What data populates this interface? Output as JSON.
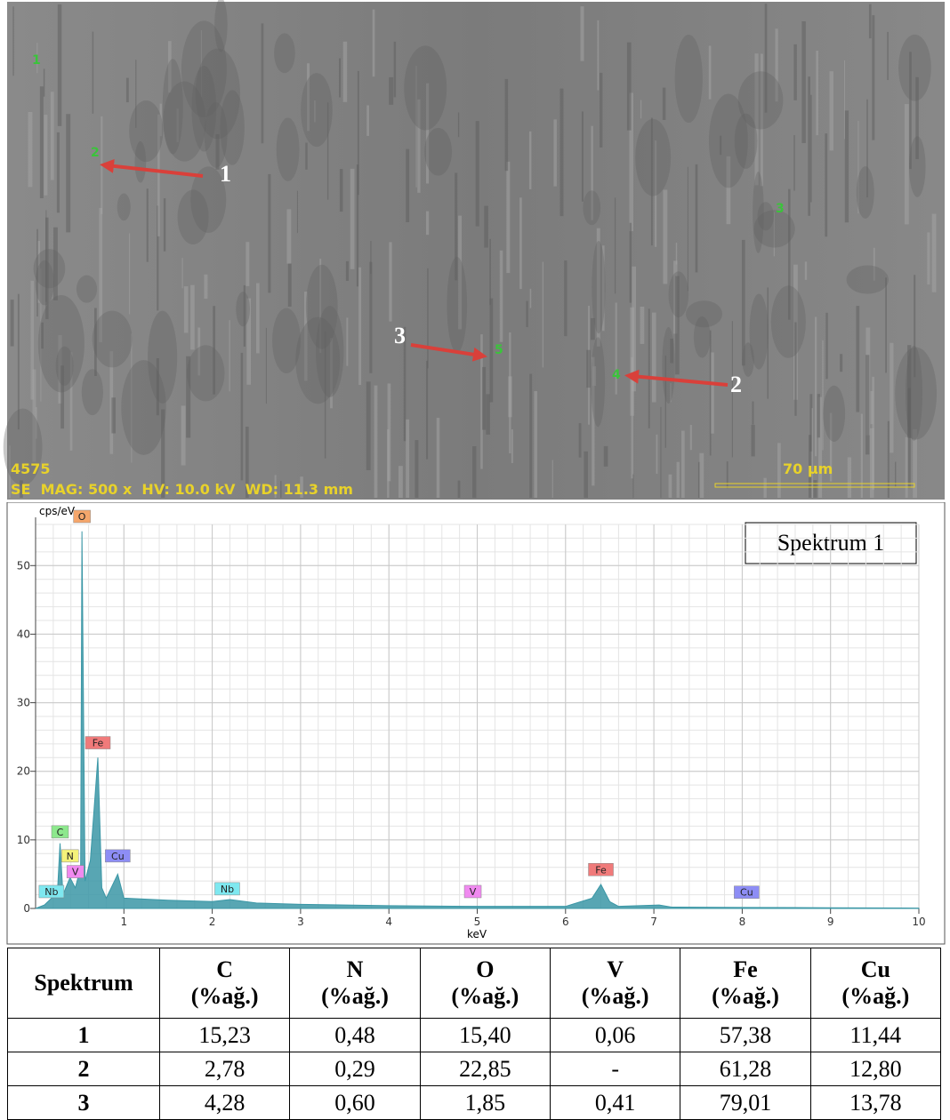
{
  "sem_image": {
    "point_labels": [
      "1",
      "2",
      "3",
      "4",
      "5"
    ],
    "arrow_labels": [
      "1",
      "2",
      "3"
    ],
    "sample_id": "4575",
    "info": "SE  MAG: 500 x  HV: 10.0 kV  WD: 11.3 mm",
    "scale_bar": "70 µm"
  },
  "chart_data": {
    "type": "area",
    "ylabel": "cps/eV",
    "xlabel": "keV",
    "box_label": "Spektrum 1",
    "x": [
      0,
      0.1,
      0.18,
      0.25,
      0.277,
      0.31,
      0.39,
      0.45,
      0.51,
      0.525,
      0.56,
      0.62,
      0.705,
      0.75,
      0.8,
      0.93,
      1.0,
      1.5,
      2.0,
      2.2,
      2.5,
      3,
      4,
      5,
      6,
      6.3,
      6.4,
      6.5,
      6.6,
      7.06,
      7.2,
      8,
      9,
      10
    ],
    "series": [
      {
        "name": "Spektrum 1",
        "color": "#3b97a6",
        "values": [
          0,
          0.5,
          1.5,
          3,
          9.5,
          2,
          4.5,
          3,
          6,
          55,
          4,
          7,
          22,
          3,
          1.5,
          5,
          1.5,
          1.2,
          1.0,
          1.3,
          0.8,
          0.6,
          0.4,
          0.3,
          0.3,
          1.5,
          3.5,
          1.0,
          0.3,
          0.5,
          0.2,
          0.15,
          0.1,
          0.05
        ]
      }
    ],
    "xlim": [
      0,
      10
    ],
    "xticks": [
      1,
      2,
      3,
      4,
      5,
      6,
      7,
      8,
      9,
      10
    ],
    "ylim": [
      0,
      56
    ],
    "yticks": [
      0,
      10,
      20,
      30,
      40,
      50
    ],
    "grid": true,
    "peak_labels": [
      {
        "text": "O",
        "x": 0.525,
        "y": 56,
        "color": "#f5a66b"
      },
      {
        "text": "Fe",
        "x": 0.705,
        "y": 23,
        "color": "#f07a7a"
      },
      {
        "text": "C",
        "x": 0.277,
        "y": 10,
        "color": "#8de88d"
      },
      {
        "text": "N",
        "x": 0.39,
        "y": 6.5,
        "color": "#f4f27a"
      },
      {
        "text": "V",
        "x": 0.45,
        "y": 4.2,
        "color": "#f08af0"
      },
      {
        "text": "Cu",
        "x": 0.93,
        "y": 6.5,
        "color": "#8d8df5"
      },
      {
        "text": "Nb",
        "x": 0.18,
        "y": 1.3,
        "color": "#7ee8f0"
      },
      {
        "text": "Nb",
        "x": 2.17,
        "y": 1.7,
        "color": "#7ee8f0"
      },
      {
        "text": "V",
        "x": 4.95,
        "y": 1.3,
        "color": "#f08af0"
      },
      {
        "text": "Fe",
        "x": 6.4,
        "y": 4.5,
        "color": "#f07a7a"
      },
      {
        "text": "Cu",
        "x": 8.05,
        "y": 1.2,
        "color": "#8d8df5"
      }
    ]
  },
  "table": {
    "corner": "Spektrum",
    "columns": [
      {
        "element": "C",
        "unit": "(%ağ.)"
      },
      {
        "element": "N",
        "unit": "(%ağ.)"
      },
      {
        "element": "O",
        "unit": "(%ağ.)"
      },
      {
        "element": "V",
        "unit": "(%ağ.)"
      },
      {
        "element": "Fe",
        "unit": "(%ağ.)"
      },
      {
        "element": "Cu",
        "unit": "(%ağ.)"
      }
    ],
    "rows": [
      [
        "1",
        "15,23",
        "0,48",
        "15,40",
        "0,06",
        "57,38",
        "11,44"
      ],
      [
        "2",
        "2,78",
        "0,29",
        "22,85",
        "-",
        "61,28",
        "12,80"
      ],
      [
        "3",
        "4,28",
        "0,60",
        "1,85",
        "0,41",
        "79,01",
        "13,78"
      ]
    ]
  }
}
